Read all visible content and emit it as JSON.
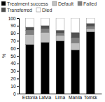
{
  "chart_data": {
    "type": "bar",
    "stacked": true,
    "categories": [
      "Estonia",
      "Latvia",
      "Lima",
      "Manila",
      "Tomsk"
    ],
    "series": [
      {
        "name": "Treatment success",
        "color": "#000000",
        "values": [
          65,
          68,
          70,
          58,
          82
        ]
      },
      {
        "name": "Default",
        "color": "#c0c0c0",
        "values": [
          13,
          13,
          7,
          9,
          4
        ]
      },
      {
        "name": "Failed",
        "color": "#808080",
        "values": [
          6,
          5,
          3,
          7,
          3
        ]
      },
      {
        "name": "Transferred",
        "color": "#505050",
        "values": [
          4,
          4,
          4,
          7,
          4
        ]
      },
      {
        "name": "Died",
        "color": "#ffffff",
        "values": [
          12,
          10,
          16,
          19,
          7
        ]
      }
    ],
    "ylabel": "%",
    "ylim": [
      0,
      100
    ],
    "yticks": [
      0,
      10,
      20,
      30,
      40,
      50,
      60,
      70,
      80,
      90,
      100
    ],
    "grid": false,
    "legend": "upper left"
  }
}
